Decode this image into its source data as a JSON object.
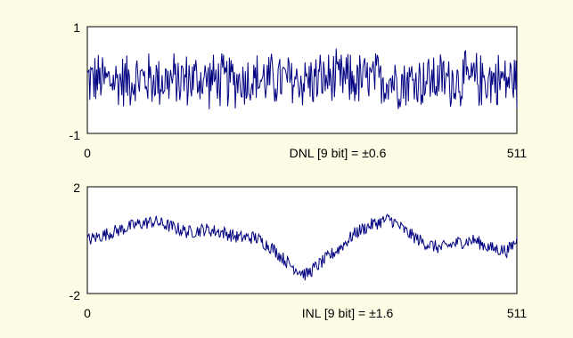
{
  "chart_data": [
    {
      "type": "line",
      "caption": "DNL [9 bit] = ±0.6",
      "xlabel": "",
      "ylabel": "",
      "xlim": [
        0,
        511
      ],
      "ylim": [
        -1,
        1
      ],
      "xticks": [
        "0",
        "511"
      ],
      "yticks": [
        "1",
        "-1"
      ],
      "grid": false,
      "legend": "none",
      "series": [
        {
          "color": "#000080",
          "envelope": "uniform noise about 0 within ±0.6",
          "x": [
            0,
            32,
            64,
            96,
            128,
            160,
            192,
            224,
            256,
            288,
            320,
            352,
            384,
            416,
            448,
            480,
            511
          ],
          "y": [
            0.1,
            -0.3,
            0.4,
            -0.2,
            0.3,
            -0.4,
            0.2,
            0.0,
            -0.3,
            0.4,
            -0.1,
            0.3,
            -0.4,
            0.2,
            -0.2,
            0.3,
            0.0
          ]
        }
      ]
    },
    {
      "type": "line",
      "caption": "INL [9 bit] = ±1.6",
      "xlabel": "",
      "ylabel": "",
      "xlim": [
        0,
        511
      ],
      "ylim": [
        -2,
        2
      ],
      "xticks": [
        "0",
        "511"
      ],
      "yticks": [
        "2",
        "-2"
      ],
      "grid": false,
      "legend": "none",
      "series": [
        {
          "color": "#000080",
          "x": [
            0,
            20,
            40,
            60,
            80,
            100,
            120,
            140,
            160,
            180,
            200,
            220,
            240,
            260,
            280,
            300,
            320,
            340,
            360,
            380,
            400,
            420,
            440,
            460,
            480,
            500,
            511
          ],
          "y": [
            0.0,
            0.2,
            0.4,
            0.6,
            0.7,
            0.5,
            0.3,
            0.4,
            0.3,
            0.1,
            0.1,
            -0.3,
            -0.9,
            -1.3,
            -0.8,
            -0.3,
            0.3,
            0.6,
            0.8,
            0.3,
            -0.1,
            -0.3,
            -0.1,
            0.0,
            -0.3,
            -0.4,
            0.0
          ]
        }
      ]
    }
  ]
}
